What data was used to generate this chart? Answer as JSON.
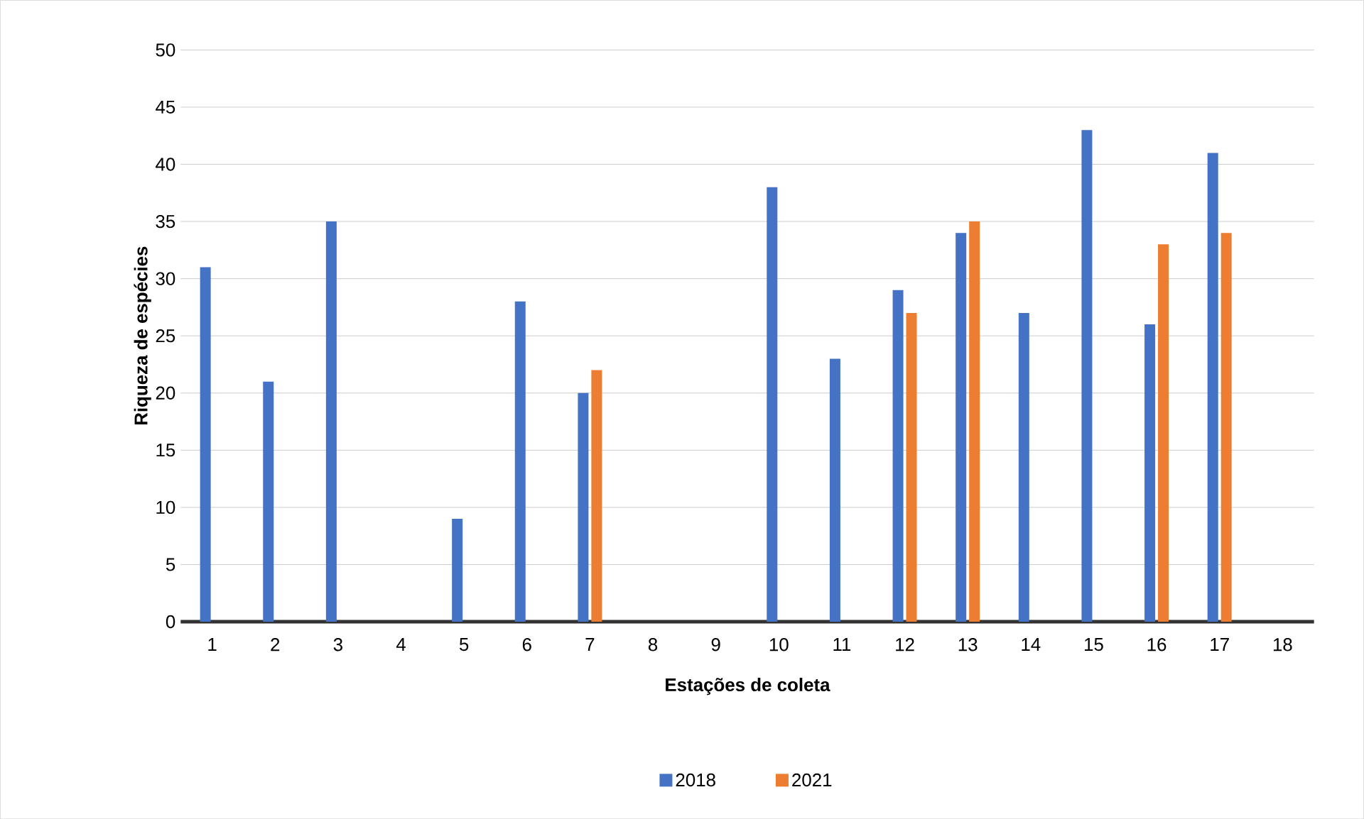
{
  "chart_data": {
    "type": "bar",
    "xlabel": "Estações de coleta",
    "ylabel": "Riqueza  de espécies",
    "categories": [
      "1",
      "2",
      "3",
      "4",
      "5",
      "6",
      "7",
      "8",
      "9",
      "10",
      "11",
      "12",
      "13",
      "14",
      "15",
      "16",
      "17",
      "18"
    ],
    "series": [
      {
        "name": "2018",
        "color": "#4472c4",
        "values": [
          31,
          21,
          35,
          null,
          9,
          28,
          20,
          null,
          null,
          38,
          23,
          29,
          34,
          27,
          43,
          26,
          41,
          null
        ]
      },
      {
        "name": "2021",
        "color": "#ed7d31",
        "values": [
          null,
          null,
          null,
          null,
          null,
          null,
          22,
          null,
          null,
          null,
          null,
          27,
          35,
          null,
          null,
          33,
          34,
          null
        ]
      }
    ],
    "ylim": [
      0,
      50
    ],
    "yticks": [
      0,
      5,
      10,
      15,
      20,
      25,
      30,
      35,
      40,
      45,
      50
    ],
    "grid": "y",
    "legend": "bottom"
  }
}
